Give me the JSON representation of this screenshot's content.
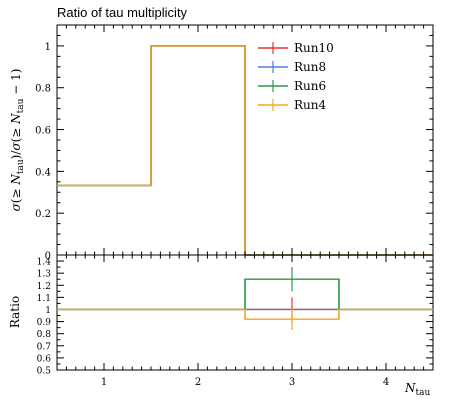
{
  "chart_data": {
    "type": "line",
    "title": "Ratio of tau multiplicity",
    "xlabel": "N_tau",
    "ylabel": "σ(≥ N_tau)/σ(≥ N_tau − 1)",
    "xlim": [
      0.5,
      4.5
    ],
    "ylim": [
      0,
      1.1
    ],
    "x_ticks": [
      1,
      2,
      3,
      4
    ],
    "y_ticks": [
      "0",
      "0.2",
      "0.4",
      "0.6",
      "0.8",
      "1"
    ],
    "bin_edges": [
      0.5,
      1.5,
      2.5,
      3.5,
      4.5
    ],
    "legend_position": "top-right",
    "series": [
      {
        "name": "Run10",
        "color": "#e8352e",
        "values": [
          0.333,
          1.0,
          0.0,
          0.0
        ]
      },
      {
        "name": "Run8",
        "color": "#4a7fe0",
        "values": [
          0.333,
          1.0,
          0.0,
          0.0
        ]
      },
      {
        "name": "Run6",
        "color": "#2c9a46",
        "values": [
          0.333,
          1.0,
          0.0,
          0.0
        ]
      },
      {
        "name": "Run4",
        "color": "#f5a623",
        "values": [
          0.333,
          1.0,
          0.0,
          0.0
        ]
      }
    ],
    "ratio_panel": {
      "ylabel": "Ratio",
      "ylim": [
        0.5,
        1.45
      ],
      "y_ticks": [
        "0.5",
        "0.6",
        "0.7",
        "0.8",
        "0.9",
        "1",
        "1.1",
        "1.2",
        "1.3",
        "1.4"
      ],
      "series": [
        {
          "name": "Run10",
          "color": "#e8352e",
          "values": [
            1.0,
            1.0,
            1.0,
            1.0
          ],
          "errors": [
            0,
            0,
            0.1,
            0
          ]
        },
        {
          "name": "Run8",
          "color": "#4a7fe0",
          "values": [
            1.0,
            1.0,
            1.0,
            1.0
          ],
          "errors": [
            0,
            0,
            0,
            0
          ]
        },
        {
          "name": "Run6",
          "color": "#2c9a46",
          "values": [
            1.0,
            1.0,
            1.25,
            1.0
          ],
          "errors": [
            0,
            0,
            0.1,
            0
          ]
        },
        {
          "name": "Run4",
          "color": "#f5a623",
          "values": [
            1.0,
            1.0,
            0.92,
            1.0
          ],
          "errors": [
            0,
            0,
            0.09,
            0
          ]
        }
      ]
    }
  },
  "text": {
    "title": "Ratio of tau multiplicity",
    "xlabel_main": "N",
    "xlabel_sub": "tau",
    "ratio_label": "Ratio",
    "y_axis_label": "σ(≥ N_tau)/σ(≥ N_tau − 1)"
  }
}
